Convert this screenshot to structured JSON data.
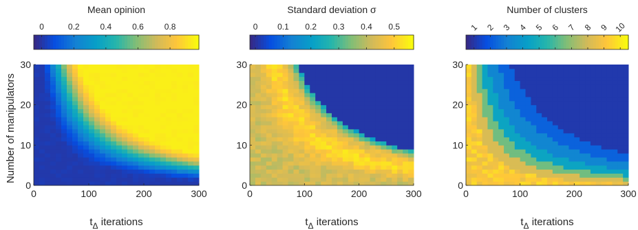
{
  "chart_data": [
    {
      "type": "heatmap",
      "colorbar": {
        "title": "Mean opinion",
        "ticks": [
          "0",
          "0.2",
          "0.4",
          "0.6",
          "0.8"
        ],
        "tick_values": [
          0,
          0.2,
          0.4,
          0.6,
          0.8
        ],
        "range": [
          -0.05,
          0.98
        ]
      },
      "xlabel": "t",
      "xlabel_sub": "Δ",
      "xlabel_tail": " iterations",
      "ylabel": "Number of manipulators",
      "xticks": [
        "0",
        "100",
        "200",
        "300"
      ],
      "yticks": [
        "0",
        "10",
        "20",
        "30"
      ],
      "xlim": [
        0,
        300
      ],
      "ylim": [
        0,
        30
      ],
      "model": "mean",
      "value_range": [
        0,
        0.95
      ]
    },
    {
      "type": "heatmap",
      "colorbar": {
        "title": "Standard deviation σ",
        "ticks": [
          "0",
          "0.1",
          "0.2",
          "0.3",
          "0.4",
          "0.5"
        ],
        "tick_values": [
          0,
          0.1,
          0.2,
          0.3,
          0.4,
          0.5
        ],
        "range": [
          -0.02,
          0.57
        ]
      },
      "xlabel": "t",
      "xlabel_sub": "Δ",
      "xlabel_tail": " iterations",
      "ylabel": "",
      "xticks": [
        "0",
        "100",
        "200",
        "300"
      ],
      "yticks": [
        "0",
        "10",
        "20",
        "30"
      ],
      "xlim": [
        0,
        300
      ],
      "ylim": [
        0,
        30
      ],
      "model": "std",
      "value_range": [
        0,
        0.55
      ]
    },
    {
      "type": "heatmap",
      "colorbar": {
        "title": "Number of clusters",
        "ticks": [
          "1",
          "2",
          "3",
          "4",
          "5",
          "6",
          "7",
          "8",
          "9",
          "10"
        ],
        "tick_values": [
          1,
          2,
          3,
          4,
          5,
          6,
          7,
          8,
          9,
          10
        ],
        "range": [
          0.5,
          10.5
        ],
        "rotated_ticks": true
      },
      "xlabel": "t",
      "xlabel_sub": "Δ",
      "xlabel_tail": " iterations",
      "ylabel": "",
      "xticks": [
        "0",
        "100",
        "200",
        "300"
      ],
      "yticks": [
        "0",
        "10",
        "20",
        "30"
      ],
      "xlim": [
        0,
        300
      ],
      "ylim": [
        0,
        30
      ],
      "model": "clusters",
      "value_range": [
        1,
        10
      ]
    }
  ]
}
